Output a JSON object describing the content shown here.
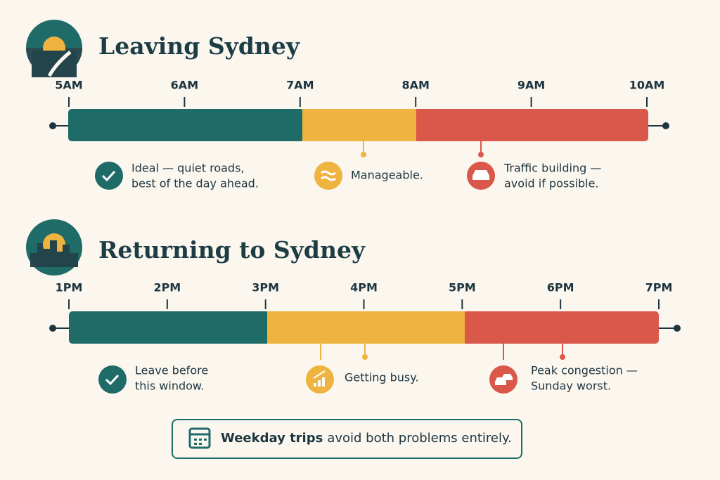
{
  "sections": [
    {
      "title": "Leaving Sydney",
      "ticks": [
        "5AM",
        "6AM",
        "7AM",
        "8AM",
        "9AM",
        "10AM"
      ],
      "notes": [
        [
          "Ideal — quiet roads,",
          "best of the day ahead."
        ],
        [
          "Manageable."
        ],
        [
          "Traffic building —",
          "avoid if possible."
        ]
      ]
    },
    {
      "title": "Returning to Sydney",
      "ticks": [
        "1PM",
        "2PM",
        "3PM",
        "4PM",
        "5PM",
        "6PM",
        "7PM"
      ],
      "notes": [
        [
          "Leave before",
          "this window."
        ],
        [
          "Getting busy."
        ],
        [
          "Peak congestion —",
          "Sunday worst."
        ]
      ]
    }
  ],
  "footer": {
    "bold": "Weekday trips",
    "text": "avoid both problems entirely."
  }
}
